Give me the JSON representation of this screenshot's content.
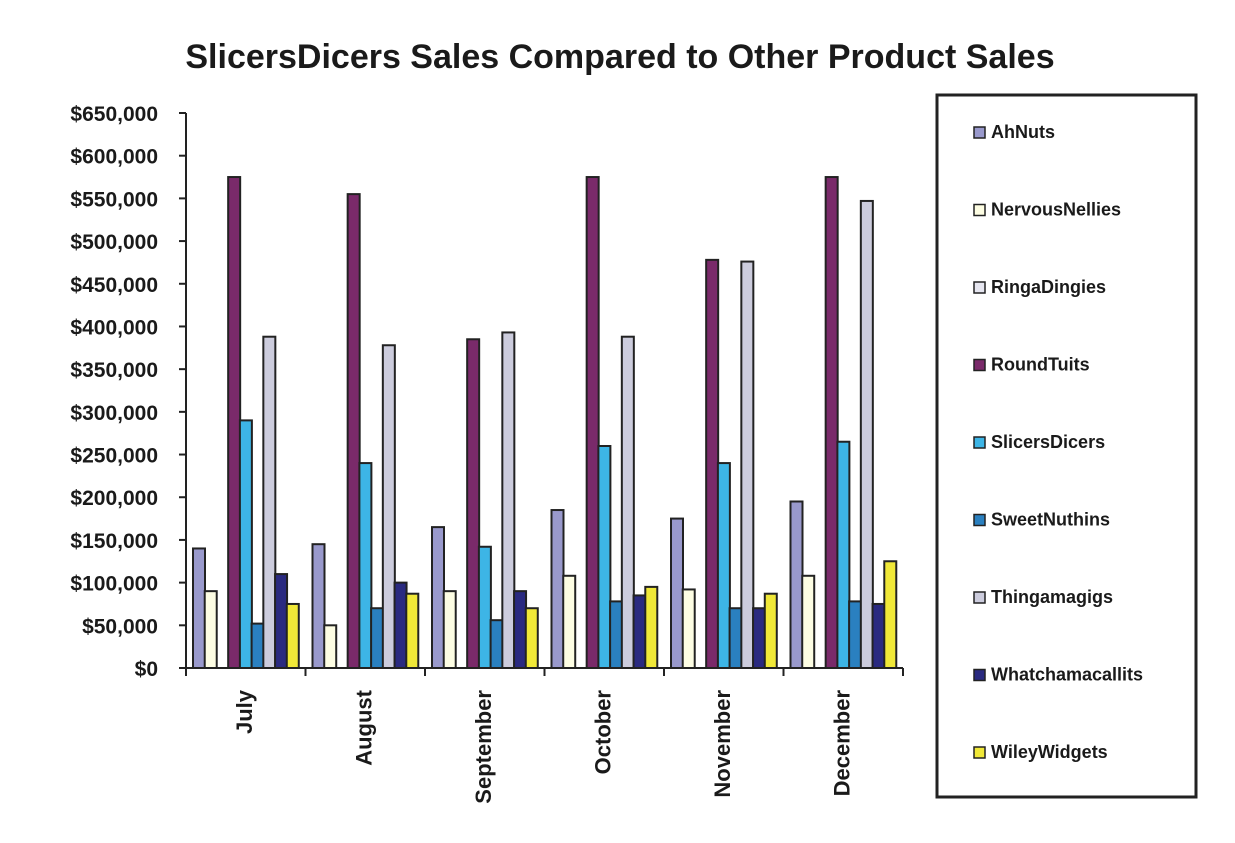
{
  "chart_data": {
    "type": "bar",
    "title": "SlicersDicers Sales Compared to Other Product Sales",
    "xlabel": "",
    "ylabel": "",
    "ylim": [
      0,
      650000
    ],
    "y_ticks": [
      "$0",
      "$50,000",
      "$100,000",
      "$150,000",
      "$200,000",
      "$250,000",
      "$300,000",
      "$350,000",
      "$400,000",
      "$450,000",
      "$500,000",
      "$550,000",
      "$600,000",
      "$650,000"
    ],
    "y_tick_values": [
      0,
      50000,
      100000,
      150000,
      200000,
      250000,
      300000,
      350000,
      400000,
      450000,
      500000,
      550000,
      600000,
      650000
    ],
    "categories": [
      "July",
      "August",
      "September",
      "October",
      "November",
      "December"
    ],
    "series": [
      {
        "name": "AhNuts",
        "color": "#9999cc",
        "values": [
          140000,
          145000,
          165000,
          185000,
          175000,
          195000
        ]
      },
      {
        "name": "NervousNellies",
        "color": "#fdfde3",
        "values": [
          90000,
          50000,
          90000,
          108000,
          92000,
          108000
        ]
      },
      {
        "name": "RingaDingies",
        "color": "#e6e6f0",
        "values": [
          0,
          0,
          0,
          0,
          0,
          0
        ]
      },
      {
        "name": "RoundTuits",
        "color": "#7a2a6a",
        "values": [
          575000,
          555000,
          385000,
          575000,
          478000,
          575000
        ]
      },
      {
        "name": "SlicersDicers",
        "color": "#3db5e6",
        "values": [
          290000,
          240000,
          142000,
          260000,
          240000,
          265000
        ]
      },
      {
        "name": "SweetNuthins",
        "color": "#2a80c0",
        "values": [
          52000,
          70000,
          56000,
          78000,
          70000,
          78000
        ]
      },
      {
        "name": "Thingamagigs",
        "color": "#ccccdd",
        "values": [
          388000,
          378000,
          393000,
          388000,
          476000,
          547000
        ]
      },
      {
        "name": "Whatchamacallits",
        "color": "#2a2a80",
        "values": [
          110000,
          100000,
          90000,
          85000,
          70000,
          75000
        ]
      },
      {
        "name": "WileyWidgets",
        "color": "#f0e838",
        "values": [
          75000,
          87000,
          70000,
          95000,
          87000,
          125000
        ]
      }
    ],
    "legend_position": "right",
    "grid": false
  }
}
